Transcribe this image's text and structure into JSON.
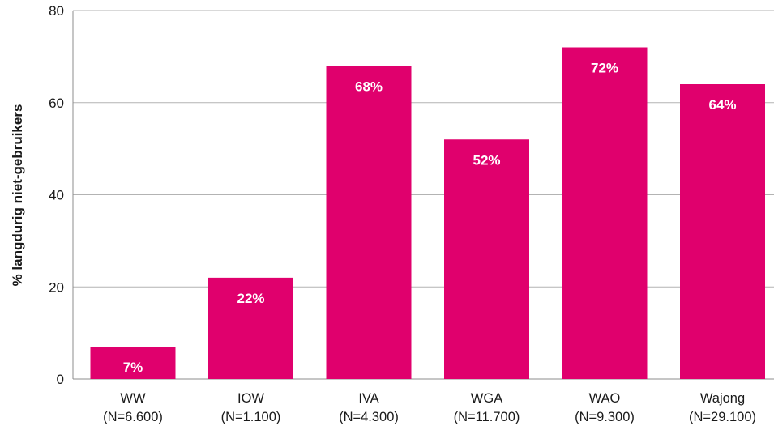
{
  "chart_data": {
    "type": "bar",
    "categories": [
      "WW",
      "IOW",
      "IVA",
      "WGA",
      "WAO",
      "Wajong"
    ],
    "category_sublabels": [
      "(N=6.600)",
      "(N=1.100)",
      "(N=4.300)",
      "(N=11.700)",
      "(N=9.300)",
      "(N=29.100)"
    ],
    "values": [
      7,
      22,
      68,
      52,
      72,
      64
    ],
    "data_labels": [
      "7%",
      "22%",
      "68%",
      "52%",
      "72%",
      "64%"
    ],
    "title": "",
    "xlabel": "",
    "ylabel": "% langdurig niet-gebruikers",
    "ylim": [
      0,
      80
    ],
    "yticks": [
      0,
      20,
      40,
      60,
      80
    ],
    "grid": true,
    "bar_color": "#e0006d"
  }
}
